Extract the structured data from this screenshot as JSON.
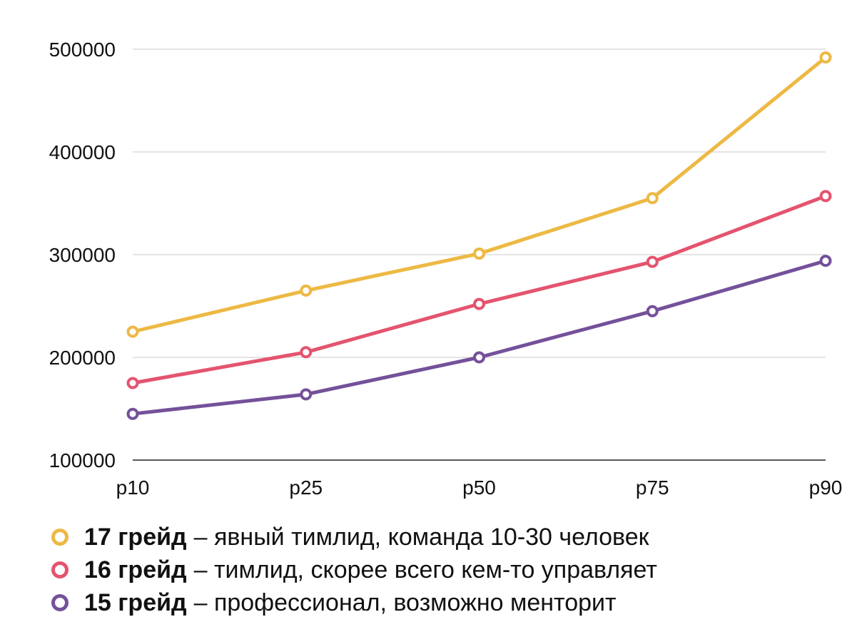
{
  "chart_data": {
    "type": "line",
    "categories": [
      "p10",
      "p25",
      "p50",
      "p75",
      "p90"
    ],
    "ylim": [
      100000,
      500000
    ],
    "yticks": [
      100000,
      200000,
      300000,
      400000,
      500000
    ],
    "grid": true,
    "legend_placement": "bottom",
    "series": [
      {
        "name": "17 грейд – явный тимлид, команда 10-30 человек",
        "legend_bold": "17 грейд",
        "legend_text": "– явный тимлид, команда 10-30 человек",
        "color": "#EDB944",
        "values": [
          225000,
          265000,
          301000,
          355000,
          492000
        ]
      },
      {
        "name": "16 грейд – тимлид, скорее всего кем-то управляет",
        "legend_bold": "16 грейд",
        "legend_text": "– тимлид, скорее всего кем-то управляет",
        "color": "#E4546F",
        "values": [
          175000,
          205000,
          252000,
          293000,
          357000
        ]
      },
      {
        "name": "15 грейд – профессионал, возможно менторит",
        "legend_bold": "15 грейд",
        "legend_text": "– профессионал, возможно менторит",
        "color": "#74519A",
        "values": [
          145000,
          164000,
          200000,
          245000,
          294000
        ]
      }
    ]
  }
}
